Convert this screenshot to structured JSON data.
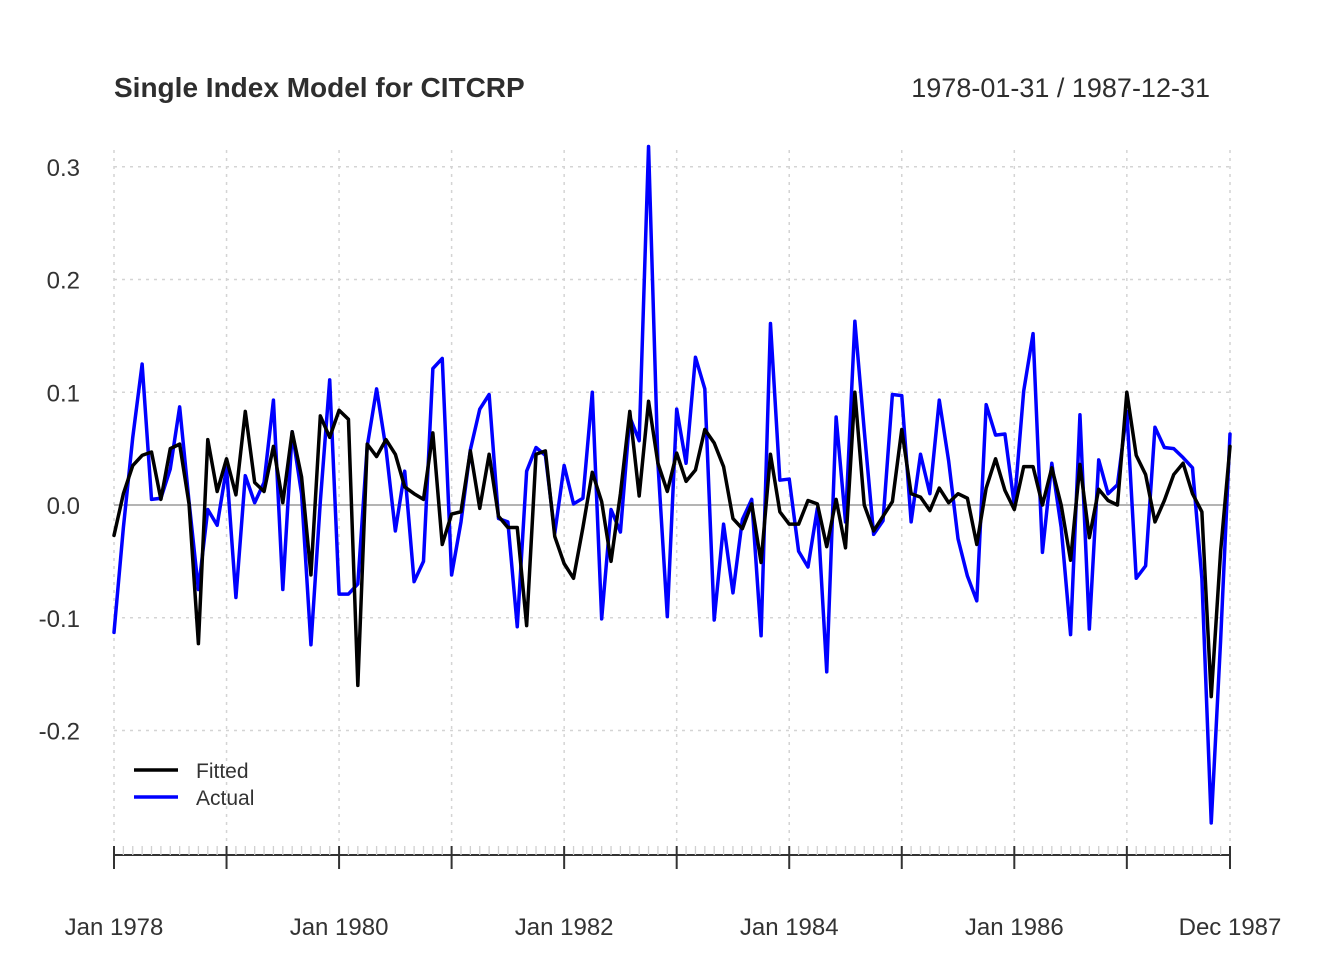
{
  "chart_data": {
    "type": "line",
    "title": "Single Index Model for CITCRP",
    "date_range_label": "1978-01-31 / 1987-12-31",
    "xlabel": "",
    "ylabel": "",
    "x_start": "1978-01",
    "x_end": "1987-12",
    "x_tick_labels": [
      "Jan 1978",
      "Jan 1980",
      "Jan 1982",
      "Jan 1984",
      "Jan 1986",
      "Dec 1987"
    ],
    "y_ticks": [
      -0.2,
      -0.1,
      0.0,
      0.1,
      0.2,
      0.3
    ],
    "y_tick_labels": [
      "-0.2",
      "-0.1",
      "0.0",
      "0.1",
      "0.2",
      "0.3"
    ],
    "ylim": [
      -0.29,
      0.32
    ],
    "grid": true,
    "legend_position": "bottom-left",
    "series": [
      {
        "name": "Fitted",
        "color": "#000000",
        "values": [
          -0.027,
          0.01,
          0.035,
          0.044,
          0.047,
          0.005,
          0.05,
          0.054,
          0.001,
          -0.123,
          0.058,
          0.012,
          0.041,
          0.009,
          0.083,
          0.02,
          0.012,
          0.052,
          0.002,
          0.065,
          0.025,
          -0.062,
          0.079,
          0.06,
          0.084,
          0.076,
          -0.16,
          0.054,
          0.043,
          0.058,
          0.045,
          0.016,
          0.01,
          0.005,
          0.064,
          -0.035,
          -0.008,
          -0.006,
          0.048,
          -0.003,
          0.045,
          -0.01,
          -0.02,
          -0.02,
          -0.107,
          0.045,
          0.048,
          -0.028,
          -0.052,
          -0.065,
          -0.02,
          0.029,
          0.003,
          -0.05,
          0.01,
          0.083,
          0.008,
          0.092,
          0.037,
          0.012,
          0.046,
          0.021,
          0.031,
          0.067,
          0.055,
          0.034,
          -0.012,
          -0.021,
          0.001,
          -0.051,
          0.045,
          -0.006,
          -0.017,
          -0.017,
          0.004,
          0.001,
          -0.037,
          0.005,
          -0.038,
          0.1,
          0.0,
          -0.023,
          -0.01,
          0.003,
          0.067,
          0.01,
          0.007,
          -0.005,
          0.015,
          0.002,
          0.01,
          0.006,
          -0.035,
          0.015,
          0.041,
          0.013,
          -0.004,
          0.034,
          0.034,
          0.0,
          0.033,
          0.0,
          -0.049,
          0.036,
          -0.029,
          0.014,
          0.004,
          0.0,
          0.1,
          0.044,
          0.027,
          -0.015,
          0.004,
          0.027,
          0.037,
          0.01,
          -0.006,
          -0.17,
          -0.041,
          0.052
        ]
      },
      {
        "name": "Actual",
        "color": "#0000ff",
        "values": [
          -0.113,
          -0.02,
          0.06,
          0.125,
          0.005,
          0.006,
          0.032,
          0.087,
          0.003,
          -0.075,
          -0.004,
          -0.018,
          0.033,
          -0.082,
          0.026,
          0.002,
          0.02,
          0.093,
          -0.075,
          0.065,
          0.01,
          -0.124,
          0.003,
          0.111,
          -0.079,
          -0.079,
          -0.07,
          0.052,
          0.103,
          0.05,
          -0.023,
          0.03,
          -0.068,
          -0.05,
          0.121,
          0.13,
          -0.062,
          -0.015,
          0.049,
          0.085,
          0.098,
          -0.012,
          -0.015,
          -0.108,
          0.03,
          0.051,
          0.044,
          -0.025,
          0.035,
          0.001,
          0.006,
          0.1,
          -0.101,
          -0.004,
          -0.024,
          0.078,
          0.057,
          0.318,
          0.037,
          -0.099,
          0.085,
          0.037,
          0.131,
          0.103,
          -0.102,
          -0.017,
          -0.078,
          -0.013,
          0.005,
          -0.116,
          0.161,
          0.022,
          0.023,
          -0.041,
          -0.055,
          -0.003,
          -0.148,
          0.078,
          -0.015,
          0.163,
          0.066,
          -0.026,
          -0.014,
          0.098,
          0.097,
          -0.015,
          0.045,
          0.01,
          0.093,
          0.039,
          -0.03,
          -0.063,
          -0.085,
          0.089,
          0.062,
          0.063,
          0.0,
          0.101,
          0.152,
          -0.042,
          0.037,
          -0.02,
          -0.115,
          0.08,
          -0.11,
          0.04,
          0.01,
          0.018,
          0.083,
          -0.065,
          -0.054,
          0.069,
          0.051,
          0.05,
          0.042,
          0.033,
          -0.065,
          -0.282,
          -0.12,
          0.063
        ]
      }
    ]
  }
}
